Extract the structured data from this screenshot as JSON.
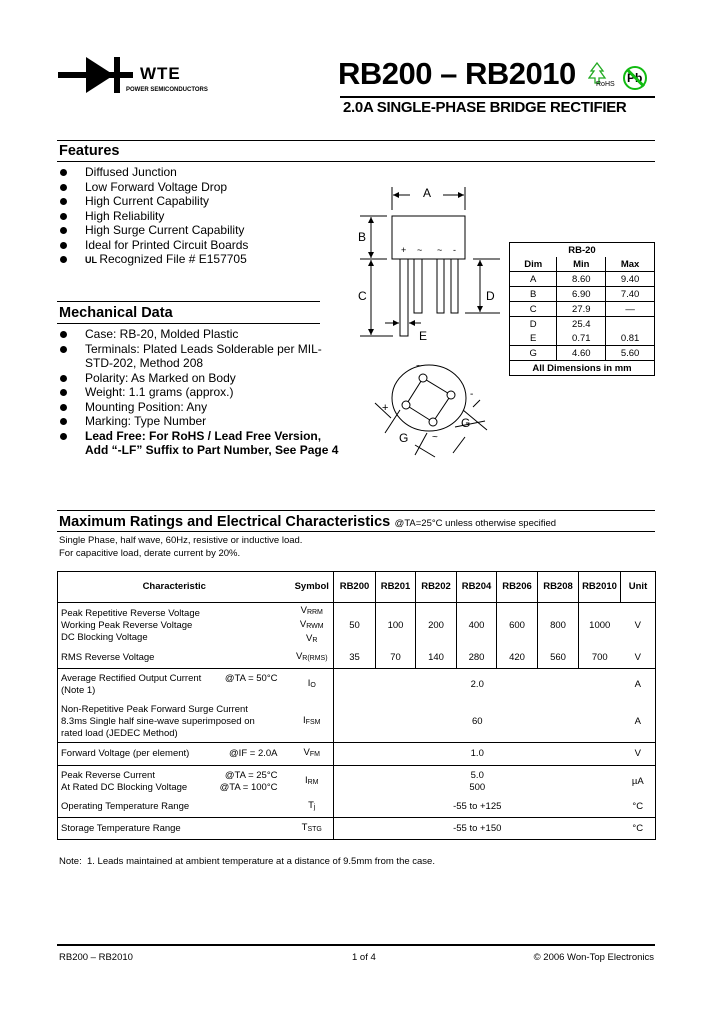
{
  "header": {
    "logo_text": "WTE",
    "logo_tagline": "POWER SEMICONDUCTORS",
    "title": "RB200 – RB2010",
    "rohs_label": "RoHS",
    "pb_label": "Pb",
    "subtitle": "2.0A SINGLE-PHASE BRIDGE RECTIFIER"
  },
  "features": {
    "heading": "Features",
    "items": [
      "Diffused Junction",
      "Low Forward Voltage Drop",
      "High Current Capability",
      "High Reliability",
      "High Surge Current Capability",
      "Ideal for Printed Circuit Boards",
      "Recognized File # E157705"
    ],
    "ul_mark": "UL"
  },
  "mechanical": {
    "heading": "Mechanical Data",
    "items": [
      "Case: RB-20, Molded Plastic",
      "Terminals: Plated Leads Solderable per MIL-STD-202, Method 208",
      "Polarity: As Marked on Body",
      "Weight: 1.1 grams (approx.)",
      "Mounting Position: Any",
      "Marking: Type Number",
      "Lead Free: For RoHS / Lead Free Version, Add “-LF” Suffix to Part Number, See Page 4"
    ]
  },
  "diagram": {
    "labels": {
      "A": "A",
      "B": "B",
      "C": "C",
      "D": "D",
      "E": "E",
      "G1": "G",
      "G2": "G",
      "plus_top": "+",
      "ac1_top": "~",
      "ac2_top": "~",
      "minus_top": "-",
      "ac_bottom": "~",
      "minus_bottom": "-",
      "plus_bottom": "+",
      "ac_bottom2": "~"
    }
  },
  "dimensions": {
    "package": "RB-20",
    "headers": [
      "Dim",
      "Min",
      "Max"
    ],
    "rows": [
      [
        "A",
        "8.60",
        "9.40"
      ],
      [
        "B",
        "6.90",
        "7.40"
      ],
      [
        "C",
        "27.9",
        "—"
      ],
      [
        "D",
        "25.4",
        ""
      ],
      [
        "E",
        "0.71",
        "0.81"
      ],
      [
        "G",
        "4.60",
        "5.60"
      ]
    ],
    "footer": "All Dimensions in mm"
  },
  "ratings": {
    "heading": "Maximum Ratings and Electrical Characteristics",
    "condition": "@TA=25°C unless otherwise specified",
    "notes": [
      "Single Phase, half wave, 60Hz, resistive or inductive load.",
      "For capacitive load, derate current by 20%."
    ],
    "table": {
      "headers": [
        "Characteristic",
        "Symbol",
        "RB200",
        "RB201",
        "RB202",
        "RB204",
        "RB206",
        "RB208",
        "RB2010",
        "Unit"
      ],
      "rows": [
        {
          "char": [
            "Peak Repetitive Reverse Voltage",
            "Working Peak Reverse Voltage",
            "DC Blocking Voltage"
          ],
          "cond": [
            "",
            "",
            ""
          ],
          "sym": [
            [
              "V",
              "RRM"
            ],
            [
              "V",
              "RWM"
            ],
            [
              "V",
              "R"
            ]
          ],
          "values": [
            "50",
            "100",
            "200",
            "400",
            "600",
            "800",
            "1000"
          ],
          "unit": "V"
        },
        {
          "char": [
            "RMS Reverse Voltage"
          ],
          "cond": [
            ""
          ],
          "sym": [
            [
              "V",
              "R(RMS)"
            ]
          ],
          "values": [
            "35",
            "70",
            "140",
            "280",
            "420",
            "560",
            "700"
          ],
          "unit": "V"
        },
        {
          "char": [
            "Average Rectified Output Current",
            "(Note 1)"
          ],
          "cond": [
            "@TA = 50°C",
            ""
          ],
          "sym": [
            [
              "I",
              "O"
            ]
          ],
          "value": "2.0",
          "unit": "A"
        },
        {
          "char": [
            "Non-Repetitive Peak Forward Surge Current",
            "8.3ms Single half sine-wave superimposed on",
            "rated load (JEDEC Method)"
          ],
          "cond": [
            "",
            "",
            ""
          ],
          "sym": [
            [
              "I",
              "FSM"
            ]
          ],
          "value": "60",
          "unit": "A"
        },
        {
          "char": [
            "Forward Voltage (per element)"
          ],
          "cond": [
            "@IF = 2.0A"
          ],
          "sym": [
            [
              "V",
              "FM"
            ]
          ],
          "value": "1.0",
          "unit": "V"
        },
        {
          "char": [
            "Peak Reverse Current",
            "At Rated DC Blocking Voltage"
          ],
          "cond": [
            "@TA = 25°C",
            "@TA = 100°C"
          ],
          "sym": [
            [
              "I",
              "RM"
            ]
          ],
          "value": "5.0\n500",
          "unit": "µA"
        },
        {
          "char": [
            "Operating Temperature Range"
          ],
          "cond": [
            ""
          ],
          "sym": [
            [
              "T",
              "j"
            ]
          ],
          "value": "-55 to +125",
          "unit": "°C"
        },
        {
          "char": [
            "Storage Temperature Range"
          ],
          "cond": [
            ""
          ],
          "sym": [
            [
              "T",
              "STG"
            ]
          ],
          "value": "-55 to +150",
          "unit": "°C"
        }
      ]
    },
    "footnote": "Note:  1. Leads maintained at ambient temperature at a distance of 9.5mm from the case."
  },
  "footer": {
    "left": "RB200 – RB2010",
    "center": "1 of 4",
    "right": "© 2006 Won-Top Electronics"
  }
}
